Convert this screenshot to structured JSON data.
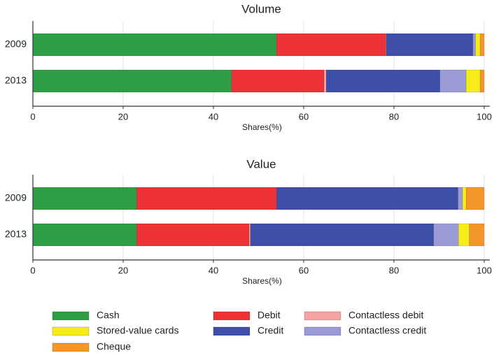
{
  "chart_data": [
    {
      "type": "bar",
      "orientation": "horizontal",
      "title": "Volume",
      "xlabel": "Shares(%)",
      "categories": [
        "2009",
        "2013"
      ],
      "series": [
        {
          "name": "Cash",
          "color": "#2e9e44",
          "values": [
            54,
            44
          ]
        },
        {
          "name": "Debit",
          "color": "#ec3237",
          "values": [
            24.2,
            20.5
          ]
        },
        {
          "name": "Contactless debit",
          "color": "#f5a3a3",
          "values": [
            0.1,
            0.5
          ]
        },
        {
          "name": "Credit",
          "color": "#3f4fa8",
          "values": [
            19.2,
            25.2
          ]
        },
        {
          "name": "Contactless credit",
          "color": "#9a9ad4",
          "values": [
            0.6,
            5.8
          ]
        },
        {
          "name": "Stored-value cards",
          "color": "#f5ec1a",
          "values": [
            1.0,
            3.1
          ]
        },
        {
          "name": "Cheque",
          "color": "#f5962a",
          "values": [
            0.9,
            0.9
          ]
        }
      ],
      "xlim": [
        0,
        100
      ],
      "xticks": [
        0,
        20,
        40,
        60,
        80,
        100
      ],
      "grid": true
    },
    {
      "type": "bar",
      "orientation": "horizontal",
      "title": "Value",
      "xlabel": "Shares(%)",
      "categories": [
        "2009",
        "2013"
      ],
      "series": [
        {
          "color": "#2e9e44",
          "values": [
            23,
            23
          ]
        },
        {
          "color": "#ec3237",
          "values": [
            31,
            24.9
          ]
        },
        {
          "color": "#f5a3a3",
          "values": [
            0,
            0.3
          ]
        },
        {
          "color": "#3f4fa8",
          "values": [
            40.2,
            40.6
          ]
        },
        {
          "color": "#9a9ad4",
          "values": [
            1,
            5.5
          ]
        },
        {
          "color": "#f5ec1a",
          "values": [
            0.8,
            2.4
          ]
        },
        {
          "color": "#f5962a",
          "values": [
            4,
            3.3
          ]
        }
      ],
      "xlim": [
        0,
        100
      ],
      "xticks": [
        0,
        20,
        40,
        60,
        80,
        100
      ],
      "grid": true
    }
  ]
}
